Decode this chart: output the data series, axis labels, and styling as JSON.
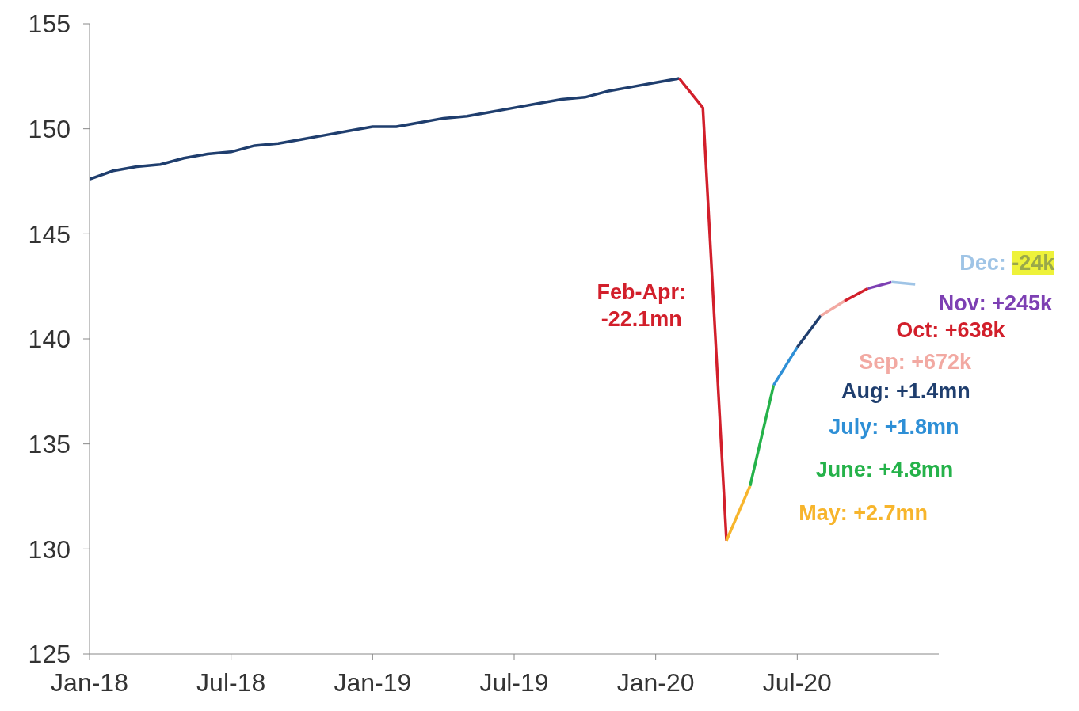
{
  "chart_data": {
    "type": "line",
    "xlim": [
      "2018-01",
      "2021-01"
    ],
    "ylim": [
      125,
      155
    ],
    "yticks": [
      125,
      130,
      135,
      140,
      145,
      150,
      155
    ],
    "xticks": [
      {
        "value": "2018-01",
        "label": "Jan-18"
      },
      {
        "value": "2018-07",
        "label": "Jul-18"
      },
      {
        "value": "2019-01",
        "label": "Jan-19"
      },
      {
        "value": "2019-07",
        "label": "Jul-19"
      },
      {
        "value": "2020-01",
        "label": "Jan-20"
      },
      {
        "value": "2020-07",
        "label": "Jul-20"
      }
    ],
    "marker": "none",
    "line_style": "solid",
    "series": [
      {
        "color": "#1f3e6e",
        "x": [
          "2018-01",
          "2018-02",
          "2018-03",
          "2018-04",
          "2018-05",
          "2018-06",
          "2018-07",
          "2018-08",
          "2018-09",
          "2018-10",
          "2018-11",
          "2018-12",
          "2019-01",
          "2019-02",
          "2019-03",
          "2019-04",
          "2019-05",
          "2019-06",
          "2019-07",
          "2019-08",
          "2019-09",
          "2019-10",
          "2019-11",
          "2019-12",
          "2020-01",
          "2020-02"
        ],
        "values": [
          147.6,
          148.0,
          148.2,
          148.3,
          148.6,
          148.8,
          148.9,
          149.2,
          149.3,
          149.5,
          149.7,
          149.9,
          150.1,
          150.1,
          150.3,
          150.5,
          150.6,
          150.8,
          151.0,
          151.2,
          151.4,
          151.5,
          151.8,
          152.0,
          152.2,
          152.4
        ]
      },
      {
        "color": "#d21f2b",
        "x": [
          "2020-02",
          "2020-03",
          "2020-04"
        ],
        "values": [
          152.4,
          151.0,
          130.4
        ]
      },
      {
        "color": "#f7b52c",
        "x": [
          "2020-04",
          "2020-05"
        ],
        "values": [
          130.4,
          133.0
        ]
      },
      {
        "color": "#25b24a",
        "x": [
          "2020-05",
          "2020-06"
        ],
        "values": [
          133.0,
          137.8
        ]
      },
      {
        "color": "#2e8fd6",
        "x": [
          "2020-06",
          "2020-07"
        ],
        "values": [
          137.8,
          139.6
        ]
      },
      {
        "color": "#1f3e6e",
        "x": [
          "2020-07",
          "2020-08"
        ],
        "values": [
          139.6,
          141.1
        ]
      },
      {
        "color": "#f2a9a2",
        "x": [
          "2020-08",
          "2020-09"
        ],
        "values": [
          141.1,
          141.8
        ]
      },
      {
        "color": "#d21f2b",
        "x": [
          "2020-09",
          "2020-10"
        ],
        "values": [
          141.8,
          142.4
        ]
      },
      {
        "color": "#7d40b3",
        "x": [
          "2020-10",
          "2020-11"
        ],
        "values": [
          142.4,
          142.7
        ]
      },
      {
        "color": "#9fc4e6",
        "x": [
          "2020-11",
          "2020-12"
        ],
        "values": [
          142.7,
          142.6
        ]
      }
    ],
    "annotations": [
      "Feb-Apr:\n-22.1mn",
      "May: +2.7mn",
      "June: +4.8mn",
      "July: +1.8mn",
      "Aug: +1.4mn",
      "Sep: +672k",
      "Oct: +638k",
      "Nov: +245k",
      "Dec: -24k"
    ]
  }
}
